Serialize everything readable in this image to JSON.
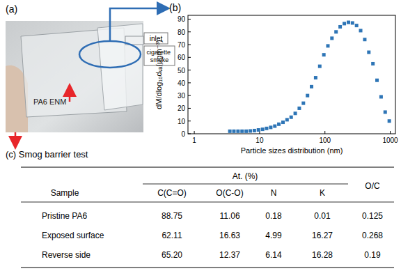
{
  "figure": {
    "panel_a": {
      "label": "(a)",
      "inlet": "inlet",
      "source": "cigarette smoke",
      "membrane": "PA6 ENM"
    },
    "panel_b": {
      "label": "(b)"
    },
    "table": {
      "title": "(c) Smog barrier test",
      "header": {
        "sample": "Sample",
        "group": "At. (%)",
        "columns": [
          "C(C=O)",
          "O(C-O)",
          "N",
          "K"
        ],
        "ratio": "O/C"
      },
      "rows": [
        [
          "Pristine PA6",
          "88.75",
          "11.06",
          "0.18",
          "0.01",
          "0.125"
        ],
        [
          "Exposed surface",
          "62.11",
          "16.63",
          "4.99",
          "16.27",
          "0.268"
        ],
        [
          "Reverse side",
          "65.20",
          "12.37",
          "6.14",
          "16.28",
          "0.19"
        ]
      ]
    }
  },
  "chart_data": {
    "type": "scatter",
    "x_label": "Particle sizes distribution (nm)",
    "y_label": "dM/dlog₁₀dᵥₐ(μgm⁻³)",
    "x": [
      3.5,
      4.04,
      4.67,
      5.39,
      6.23,
      7.19,
      8.31,
      9.6,
      11.1,
      12.8,
      14.8,
      17.1,
      19.7,
      22.8,
      26.3,
      30.4,
      35.1,
      40.5,
      46.8,
      54.1,
      62.4,
      72.1,
      83.3,
      96.2,
      111,
      128,
      148,
      171,
      198,
      229,
      264,
      305,
      352,
      407,
      470,
      543,
      627,
      724,
      836,
      966
    ],
    "values": [
      2,
      2,
      2,
      2,
      2,
      2.2,
      2.5,
      3,
      3.5,
      4.2,
      5,
      6,
      7.5,
      9,
      11,
      13,
      16,
      20,
      24,
      30,
      37,
      44,
      53,
      62,
      69,
      75,
      80,
      84,
      86.5,
      87.5,
      87,
      85,
      81,
      74,
      64,
      55,
      42,
      29,
      17,
      10
    ],
    "xlim": [
      0.8,
      1200
    ],
    "ylim": [
      0,
      93
    ],
    "xticks": [
      1,
      10,
      100,
      1000
    ],
    "yticks": [
      0,
      10,
      20,
      30,
      40,
      50,
      60,
      70,
      80,
      90
    ],
    "log": "x",
    "marker": "square",
    "color": "#2e75b6",
    "grid": false
  }
}
